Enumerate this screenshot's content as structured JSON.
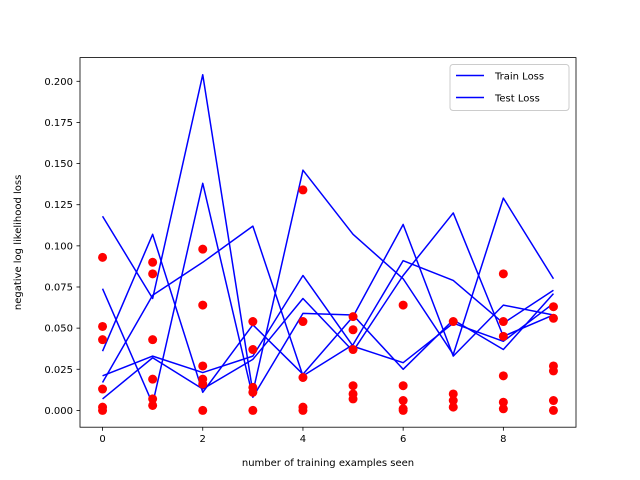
{
  "chart_data": {
    "type": "line",
    "title": "",
    "xlabel": "number of training examples seen",
    "ylabel": "negative log likelihood loss",
    "xlim": [
      -0.45,
      9.45
    ],
    "ylim": [
      -0.0102,
      0.2144
    ],
    "xticks": [
      0,
      2,
      4,
      6,
      8
    ],
    "xtick_labels": [
      "0",
      "2",
      "4",
      "6",
      "8"
    ],
    "yticks": [
      0.0,
      0.025,
      0.05,
      0.075,
      0.1,
      0.125,
      0.15,
      0.175,
      0.2
    ],
    "ytick_labels": [
      "0.000",
      "0.025",
      "0.050",
      "0.075",
      "0.100",
      "0.125",
      "0.150",
      "0.175",
      "0.200"
    ],
    "grid": false,
    "legend_position": "top-right",
    "legend": [
      {
        "label": "Train Loss",
        "color": "#0000ff",
        "marker": "line"
      },
      {
        "label": "Test Loss",
        "color": "#0000ff",
        "marker": "line"
      }
    ],
    "line_color": "#0000ff",
    "point_color": "#ff0000",
    "x": [
      0,
      1,
      2,
      3,
      4,
      5,
      6,
      7,
      8,
      9
    ],
    "series": [
      {
        "values": [
          0.118,
          0.068,
          0.204,
          0.011,
          0.146,
          0.107,
          0.08,
          0.034,
          0.129,
          0.08
        ]
      },
      {
        "values": [
          0.074,
          0.004,
          0.138,
          0.008,
          0.059,
          0.058,
          0.025,
          0.055,
          0.037,
          0.071
        ]
      },
      {
        "values": [
          0.036,
          0.107,
          0.011,
          0.052,
          0.022,
          0.057,
          0.113,
          0.033,
          0.064,
          0.058
        ]
      },
      {
        "values": [
          0.017,
          0.07,
          0.09,
          0.112,
          0.021,
          0.04,
          0.091,
          0.079,
          0.053,
          0.073
        ]
      },
      {
        "values": [
          0.007,
          0.032,
          0.013,
          0.031,
          0.068,
          0.036,
          0.082,
          0.12,
          0.045,
          0.058
        ]
      },
      {
        "values": [
          0.021,
          0.033,
          0.023,
          0.033,
          0.082,
          0.039,
          0.029,
          0.053,
          0.042,
          0.065
        ]
      }
    ],
    "points": [
      {
        "x": 0,
        "y": 0.093
      },
      {
        "x": 0,
        "y": 0.051
      },
      {
        "x": 0,
        "y": 0.043
      },
      {
        "x": 0,
        "y": 0.013
      },
      {
        "x": 0,
        "y": 0.002
      },
      {
        "x": 0,
        "y": 0.0
      },
      {
        "x": 1,
        "y": 0.09
      },
      {
        "x": 1,
        "y": 0.083
      },
      {
        "x": 1,
        "y": 0.043
      },
      {
        "x": 1,
        "y": 0.019
      },
      {
        "x": 1,
        "y": 0.007
      },
      {
        "x": 1,
        "y": 0.003
      },
      {
        "x": 2,
        "y": 0.098
      },
      {
        "x": 2,
        "y": 0.064
      },
      {
        "x": 2,
        "y": 0.027
      },
      {
        "x": 2,
        "y": 0.019
      },
      {
        "x": 2,
        "y": 0.016
      },
      {
        "x": 2,
        "y": 0.0
      },
      {
        "x": 3,
        "y": 0.054
      },
      {
        "x": 3,
        "y": 0.037
      },
      {
        "x": 3,
        "y": 0.014
      },
      {
        "x": 3,
        "y": 0.011
      },
      {
        "x": 3,
        "y": 0.0
      },
      {
        "x": 4,
        "y": 0.134
      },
      {
        "x": 4,
        "y": 0.054
      },
      {
        "x": 4,
        "y": 0.02
      },
      {
        "x": 4,
        "y": 0.002
      },
      {
        "x": 4,
        "y": 0.0
      },
      {
        "x": 5,
        "y": 0.057
      },
      {
        "x": 5,
        "y": 0.049
      },
      {
        "x": 5,
        "y": 0.037
      },
      {
        "x": 5,
        "y": 0.015
      },
      {
        "x": 5,
        "y": 0.01
      },
      {
        "x": 5,
        "y": 0.007
      },
      {
        "x": 6,
        "y": 0.064
      },
      {
        "x": 6,
        "y": 0.015
      },
      {
        "x": 6,
        "y": 0.006
      },
      {
        "x": 6,
        "y": 0.001
      },
      {
        "x": 6,
        "y": 0.0
      },
      {
        "x": 7,
        "y": 0.054
      },
      {
        "x": 7,
        "y": 0.01
      },
      {
        "x": 7,
        "y": 0.006
      },
      {
        "x": 7,
        "y": 0.002
      },
      {
        "x": 8,
        "y": 0.083
      },
      {
        "x": 8,
        "y": 0.054
      },
      {
        "x": 8,
        "y": 0.045
      },
      {
        "x": 8,
        "y": 0.021
      },
      {
        "x": 8,
        "y": 0.005
      },
      {
        "x": 8,
        "y": 0.001
      },
      {
        "x": 9,
        "y": 0.063
      },
      {
        "x": 9,
        "y": 0.056
      },
      {
        "x": 9,
        "y": 0.027
      },
      {
        "x": 9,
        "y": 0.024
      },
      {
        "x": 9,
        "y": 0.006
      },
      {
        "x": 9,
        "y": 0.0
      }
    ]
  }
}
